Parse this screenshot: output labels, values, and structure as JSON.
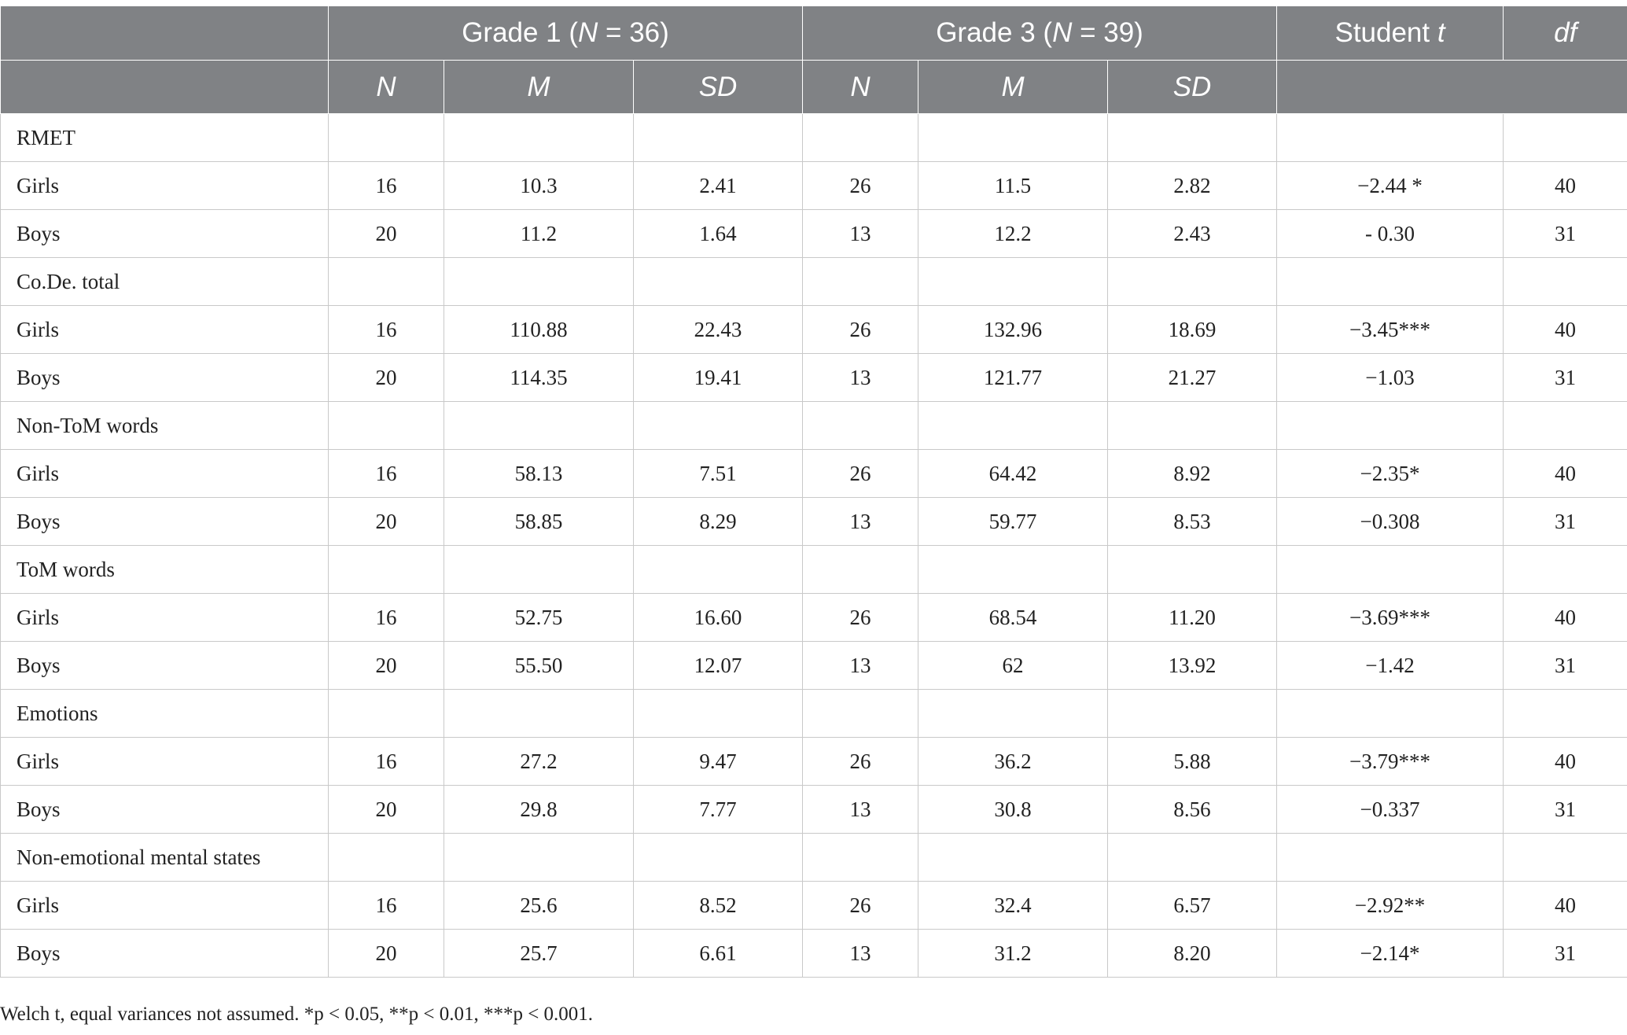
{
  "header": {
    "grade1_label": "Grade 1 (",
    "grade1_n": "N",
    "grade1_rest": " = 36)",
    "grade3_label": "Grade 3 (",
    "grade3_n": "N",
    "grade3_rest": " = 39)",
    "student_label": "Student ",
    "student_t": "t",
    "df": "df",
    "sub": [
      "N",
      "M",
      "SD",
      "N",
      "M",
      "SD"
    ]
  },
  "groups": [
    {
      "label": "RMET",
      "rows": [
        {
          "label": "Girls",
          "cells": [
            "16",
            "10.3",
            "2.41",
            "26",
            "11.5",
            "2.82",
            "−2.44 *",
            "40"
          ]
        },
        {
          "label": "Boys",
          "cells": [
            "20",
            "11.2",
            "1.64",
            "13",
            "12.2",
            "2.43",
            "- 0.30",
            "31"
          ]
        }
      ]
    },
    {
      "label": "Co.De. total",
      "rows": [
        {
          "label": "Girls",
          "cells": [
            "16",
            "110.88",
            "22.43",
            "26",
            "132.96",
            "18.69",
            "−3.45***",
            "40"
          ]
        },
        {
          "label": "Boys",
          "cells": [
            "20",
            "114.35",
            "19.41",
            "13",
            "121.77",
            "21.27",
            "−1.03",
            "31"
          ]
        }
      ]
    },
    {
      "label": "Non-ToM words",
      "rows": [
        {
          "label": "Girls",
          "cells": [
            "16",
            "58.13",
            "7.51",
            "26",
            "64.42",
            "8.92",
            "−2.35*",
            "40"
          ]
        },
        {
          "label": "Boys",
          "cells": [
            "20",
            "58.85",
            "8.29",
            "13",
            "59.77",
            "8.53",
            "−0.308",
            "31"
          ]
        }
      ]
    },
    {
      "label": "ToM words",
      "rows": [
        {
          "label": "Girls",
          "cells": [
            "16",
            "52.75",
            "16.60",
            "26",
            "68.54",
            "11.20",
            "−3.69***",
            "40"
          ]
        },
        {
          "label": "Boys",
          "cells": [
            "20",
            "55.50",
            "12.07",
            "13",
            "62",
            "13.92",
            "−1.42",
            "31"
          ]
        }
      ]
    },
    {
      "label": "Emotions",
      "rows": [
        {
          "label": "Girls",
          "cells": [
            "16",
            "27.2",
            "9.47",
            "26",
            "36.2",
            "5.88",
            "−3.79***",
            "40"
          ]
        },
        {
          "label": "Boys",
          "cells": [
            "20",
            "29.8",
            "7.77",
            "13",
            "30.8",
            "8.56",
            "−0.337",
            "31"
          ]
        }
      ]
    },
    {
      "label": "Non-emotional mental states",
      "rows": [
        {
          "label": "Girls",
          "cells": [
            "16",
            "25.6",
            "8.52",
            "26",
            "32.4",
            "6.57",
            "−2.92**",
            "40"
          ]
        },
        {
          "label": "Boys",
          "cells": [
            "20",
            "25.7",
            "6.61",
            "13",
            "31.2",
            "8.20",
            "−2.14*",
            "31"
          ]
        }
      ]
    }
  ],
  "footnote": "Welch t, equal variances not assumed. *p < 0.05, **p < 0.01, ***p < 0.001."
}
